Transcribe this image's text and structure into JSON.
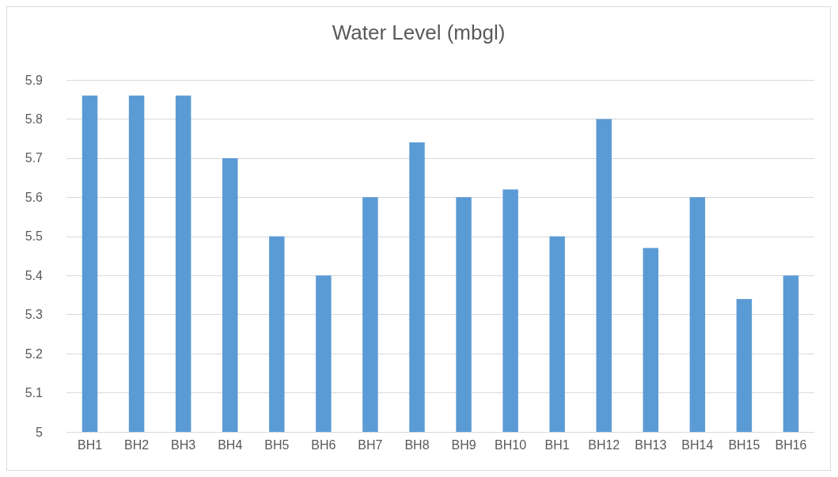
{
  "chart_data": {
    "type": "bar",
    "title": "Water Level (mbgl)",
    "categories": [
      "BH1",
      "BH2",
      "BH3",
      "BH4",
      "BH5",
      "BH6",
      "BH7",
      "BH8",
      "BH9",
      "BH10",
      "BH1",
      "BH12",
      "BH13",
      "BH14",
      "BH15",
      "BH16"
    ],
    "values": [
      5.86,
      5.86,
      5.86,
      5.7,
      5.5,
      5.4,
      5.6,
      5.74,
      5.6,
      5.62,
      5.5,
      5.8,
      5.47,
      5.6,
      5.34,
      5.4
    ],
    "color": "#5b9bd5",
    "ylim": [
      5,
      5.9
    ],
    "yticks": [
      5,
      5.1,
      5.2,
      5.3,
      5.4,
      5.5,
      5.6,
      5.7,
      5.8,
      5.9
    ],
    "grid": "y"
  }
}
